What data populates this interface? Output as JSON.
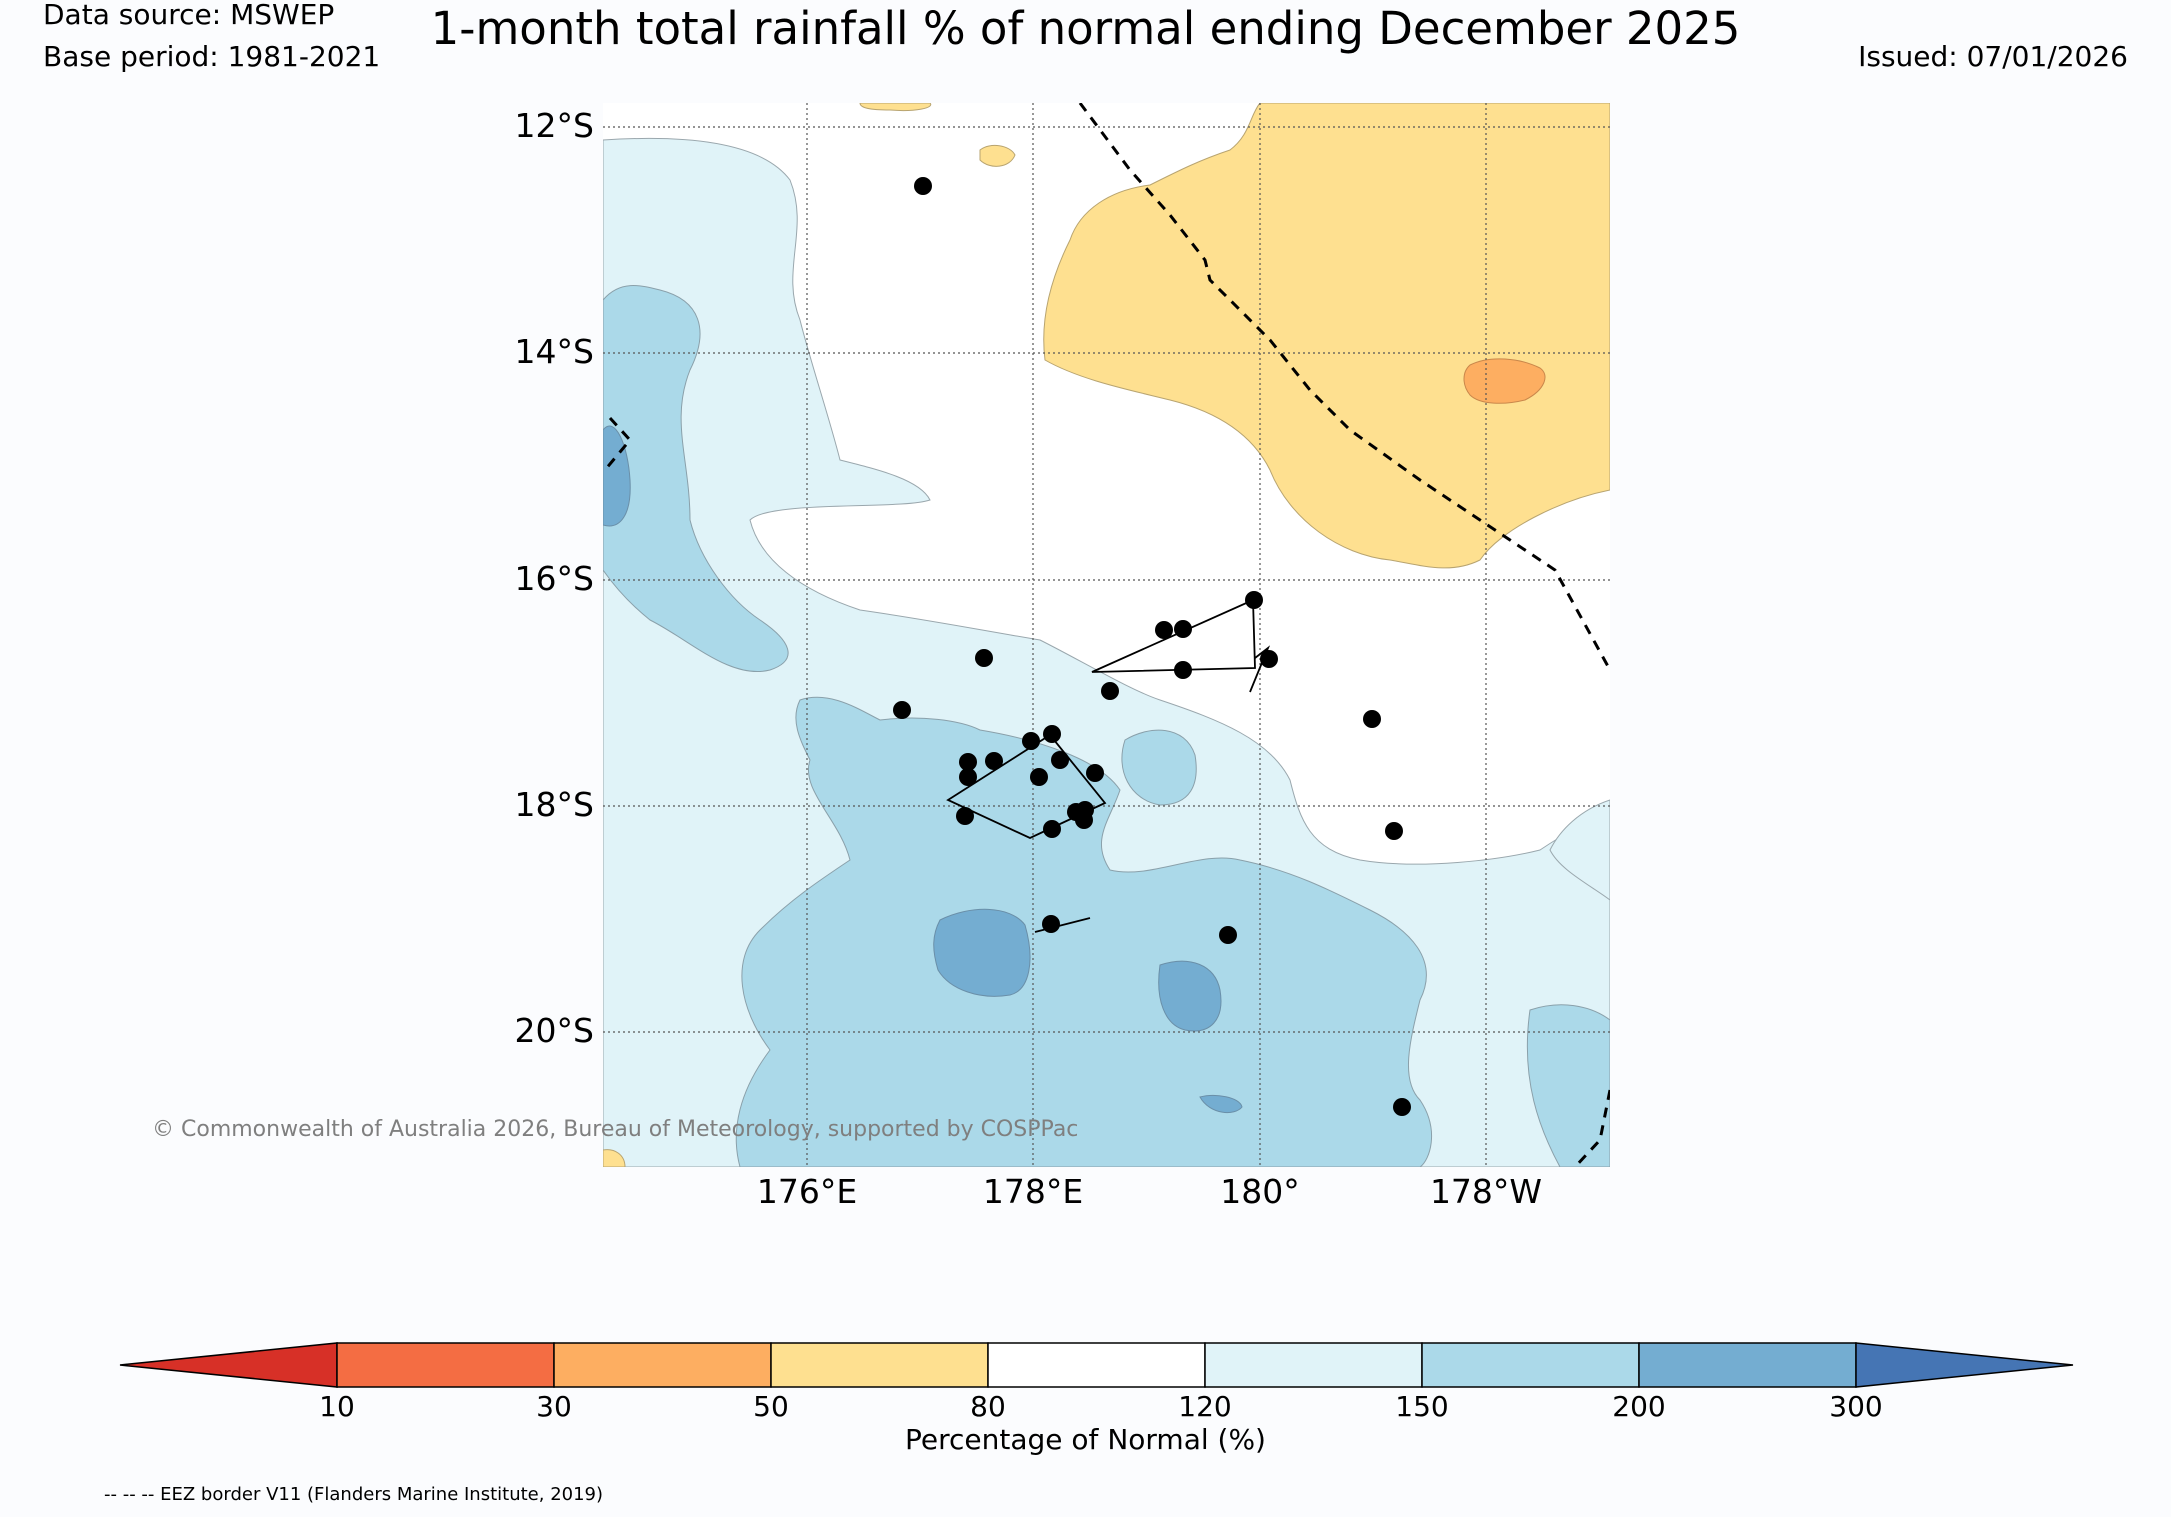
{
  "header": {
    "title": "1-month total rainfall % of normal ending December 2025",
    "data_source": "Data source: MSWEP",
    "base_period": "Base period: 1981-2021",
    "issued": "Issued: 07/01/2026"
  },
  "map": {
    "lat_labels": [
      "12°S",
      "14°S",
      "16°S",
      "18°S",
      "20°S"
    ],
    "lon_labels": [
      "176°E",
      "178°E",
      "180°",
      "178°W"
    ],
    "credit": "© Commonwealth of Australia 2026, Bureau of Meteorology, supported by COSPPac",
    "eez_note": "-- -- -- EEZ border V11 (Flanders Marine Institute, 2019)"
  },
  "colorbar": {
    "label": "Percentage of Normal (%)",
    "ticks": [
      "10",
      "30",
      "50",
      "80",
      "120",
      "150",
      "200",
      "300"
    ],
    "colors": {
      "below_10": "#d73027",
      "r10_30": "#f46d43",
      "r30_50": "#fdae61",
      "r50_80": "#fee090",
      "r80_120": "#ffffff",
      "r120_150": "#e0f3f8",
      "r150_200": "#abd9e9",
      "r200_300": "#74add1",
      "above_300": "#4575b4"
    }
  }
}
